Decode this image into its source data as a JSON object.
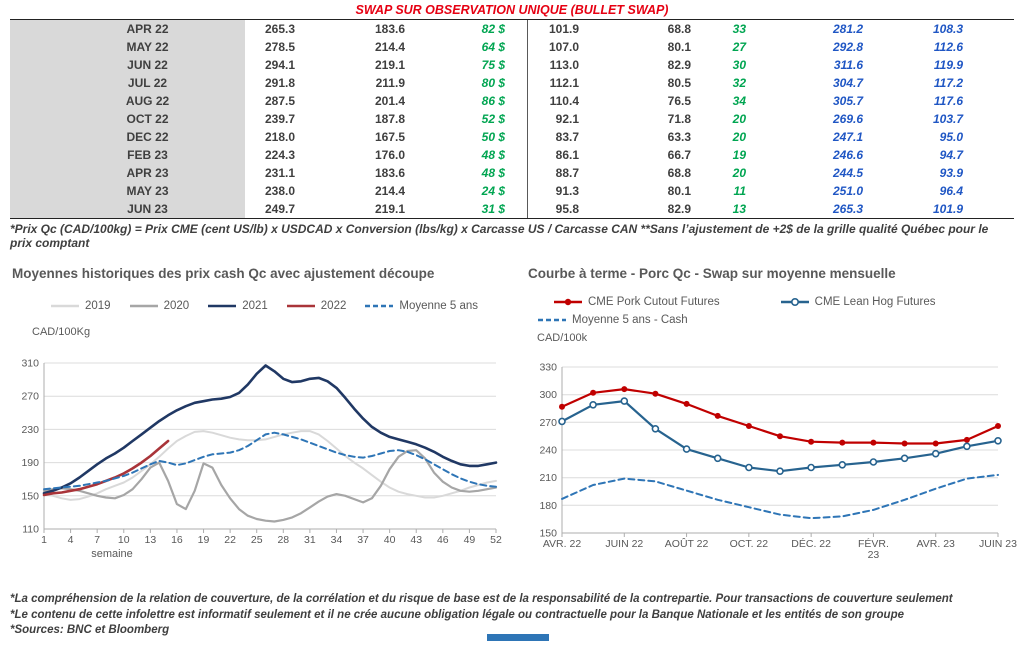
{
  "page": {
    "title": "SWAP SUR OBSERVATION UNIQUE (BULLET SWAP)",
    "table_footnote": "*Prix Qc (CAD/100kg) = Prix CME (cent US/lb) x USDCAD x Conversion (lbs/kg) x Carcasse US / Carcasse CAN **Sans l’ajustement de +2$ de la grille qualité Québec pour le prix comptant",
    "footnotes": [
      "*La compréhension de la relation de couverture, de la corrélation et du risque de base est de la responsabilité de la contrepartie. Pour transactions de couverture seulement",
      "*Le contenu de cette infolettre est informatif seulement et il ne crée aucune obligation légale ou contractuelle pour la Banque Nationale et les entités de son groupe",
      "*Sources: BNC et Bloomberg"
    ]
  },
  "colors": {
    "title_red": "#E60012",
    "green_value": "#00A551",
    "blue_value": "#1F56C4",
    "month_cell_bg": "#D9D9D9",
    "chart_title_gray": "#595959",
    "footer_bar_blue": "#2E75B6"
  },
  "swap_table": {
    "rows": [
      {
        "month": "APR 22",
        "qc_cutout": "265.3",
        "qc_hog": "183.6",
        "qc_spread": "82 $",
        "us_cutout": "101.9",
        "us_hog": "68.8",
        "us_spread": "33",
        "qc_cutout_adj": "281.2",
        "us_cutout_adj": "108.3"
      },
      {
        "month": "MAY 22",
        "qc_cutout": "278.5",
        "qc_hog": "214.4",
        "qc_spread": "64 $",
        "us_cutout": "107.0",
        "us_hog": "80.1",
        "us_spread": "27",
        "qc_cutout_adj": "292.8",
        "us_cutout_adj": "112.6"
      },
      {
        "month": "JUN 22",
        "qc_cutout": "294.1",
        "qc_hog": "219.1",
        "qc_spread": "75 $",
        "us_cutout": "113.0",
        "us_hog": "82.9",
        "us_spread": "30",
        "qc_cutout_adj": "311.6",
        "us_cutout_adj": "119.9"
      },
      {
        "month": "JUL 22",
        "qc_cutout": "291.8",
        "qc_hog": "211.9",
        "qc_spread": "80 $",
        "us_cutout": "112.1",
        "us_hog": "80.5",
        "us_spread": "32",
        "qc_cutout_adj": "304.7",
        "us_cutout_adj": "117.2"
      },
      {
        "month": "AUG 22",
        "qc_cutout": "287.5",
        "qc_hog": "201.4",
        "qc_spread": "86 $",
        "us_cutout": "110.4",
        "us_hog": "76.5",
        "us_spread": "34",
        "qc_cutout_adj": "305.7",
        "us_cutout_adj": "117.6"
      },
      {
        "month": "OCT 22",
        "qc_cutout": "239.7",
        "qc_hog": "187.8",
        "qc_spread": "52 $",
        "us_cutout": "92.1",
        "us_hog": "71.8",
        "us_spread": "20",
        "qc_cutout_adj": "269.6",
        "us_cutout_adj": "103.7"
      },
      {
        "month": "DEC 22",
        "qc_cutout": "218.0",
        "qc_hog": "167.5",
        "qc_spread": "50 $",
        "us_cutout": "83.7",
        "us_hog": "63.3",
        "us_spread": "20",
        "qc_cutout_adj": "247.1",
        "us_cutout_adj": "95.0"
      },
      {
        "month": "FEB 23",
        "qc_cutout": "224.3",
        "qc_hog": "176.0",
        "qc_spread": "48 $",
        "us_cutout": "86.1",
        "us_hog": "66.7",
        "us_spread": "19",
        "qc_cutout_adj": "246.6",
        "us_cutout_adj": "94.7"
      },
      {
        "month": "APR 23",
        "qc_cutout": "231.1",
        "qc_hog": "183.6",
        "qc_spread": "48 $",
        "us_cutout": "88.7",
        "us_hog": "68.8",
        "us_spread": "20",
        "qc_cutout_adj": "244.5",
        "us_cutout_adj": "93.9"
      },
      {
        "month": "MAY 23",
        "qc_cutout": "238.0",
        "qc_hog": "214.4",
        "qc_spread": "24 $",
        "us_cutout": "91.3",
        "us_hog": "80.1",
        "us_spread": "11",
        "qc_cutout_adj": "251.0",
        "us_cutout_adj": "96.4"
      },
      {
        "month": "JUN 23",
        "qc_cutout": "249.7",
        "qc_hog": "219.1",
        "qc_spread": "31 $",
        "us_cutout": "95.8",
        "us_hog": "82.9",
        "us_spread": "13",
        "qc_cutout_adj": "265.3",
        "us_cutout_adj": "101.9"
      }
    ]
  },
  "chart_data": [
    {
      "type": "line",
      "title": "Moyennes historiques des prix cash Qc avec ajustement découpe",
      "ylabel": "CAD/100Kg",
      "xlabel": "semaine",
      "ylim": [
        110,
        310
      ],
      "yticks": [
        110,
        150,
        190,
        230,
        270,
        310
      ],
      "x": [
        1,
        2,
        3,
        4,
        5,
        6,
        7,
        8,
        9,
        10,
        11,
        12,
        13,
        14,
        15,
        16,
        17,
        18,
        19,
        20,
        21,
        22,
        23,
        24,
        25,
        26,
        27,
        28,
        29,
        30,
        31,
        32,
        33,
        34,
        35,
        36,
        37,
        38,
        39,
        40,
        41,
        42,
        43,
        44,
        45,
        46,
        47,
        48,
        49,
        50,
        51,
        52
      ],
      "xticks": [
        1,
        4,
        7,
        10,
        13,
        16,
        19,
        22,
        25,
        28,
        31,
        34,
        37,
        40,
        43,
        46,
        49,
        52
      ],
      "grid": true,
      "legend_position": "top",
      "series": [
        {
          "name": "2019",
          "color": "#D9D9D9",
          "width": 2,
          "values": [
            152,
            150,
            147,
            145,
            146,
            149,
            153,
            158,
            162,
            166,
            172,
            180,
            188,
            197,
            207,
            216,
            222,
            227,
            228,
            226,
            223,
            220,
            218,
            217,
            217,
            218,
            221,
            224,
            226,
            228,
            228,
            224,
            216,
            207,
            198,
            190,
            183,
            175,
            167,
            160,
            155,
            152,
            150,
            148,
            148,
            150,
            153,
            156,
            160,
            163,
            166,
            168
          ]
        },
        {
          "name": "2020",
          "color": "#A6A6A6",
          "width": 2.2,
          "values": [
            156,
            158,
            159,
            158,
            156,
            153,
            150,
            148,
            147,
            151,
            158,
            170,
            184,
            190,
            168,
            140,
            134,
            156,
            189,
            184,
            163,
            147,
            134,
            126,
            122,
            120,
            119,
            121,
            124,
            129,
            136,
            143,
            149,
            152,
            150,
            146,
            142,
            147,
            162,
            182,
            197,
            204,
            205,
            195,
            178,
            167,
            160,
            156,
            155,
            156,
            158,
            160
          ]
        },
        {
          "name": "2021",
          "color": "#203864",
          "width": 2.6,
          "values": [
            153,
            156,
            160,
            165,
            172,
            180,
            188,
            195,
            201,
            208,
            216,
            224,
            232,
            240,
            247,
            253,
            258,
            262,
            264,
            266,
            267,
            269,
            274,
            284,
            297,
            307,
            300,
            291,
            287,
            288,
            291,
            292,
            288,
            280,
            268,
            255,
            243,
            233,
            226,
            221,
            218,
            215,
            212,
            208,
            203,
            197,
            192,
            188,
            186,
            186,
            188,
            190
          ]
        },
        {
          "name": "2022",
          "color": "#A93439",
          "width": 2.6,
          "values": [
            151,
            153,
            154,
            156,
            158,
            161,
            164,
            168,
            172,
            177,
            183,
            190,
            198,
            207,
            216,
            null,
            null,
            null,
            null,
            null,
            null,
            null,
            null,
            null,
            null,
            null,
            null,
            null,
            null,
            null,
            null,
            null,
            null,
            null,
            null,
            null,
            null,
            null,
            null,
            null,
            null,
            null,
            null,
            null,
            null,
            null,
            null,
            null,
            null,
            null,
            null,
            null
          ]
        },
        {
          "name": "Moyenne 5 ans",
          "color": "#2E75B6",
          "width": 2,
          "dash": true,
          "values": [
            158,
            159,
            160,
            161,
            162,
            164,
            166,
            168,
            171,
            174,
            178,
            183,
            188,
            192,
            190,
            187,
            189,
            193,
            197,
            200,
            201,
            202,
            205,
            210,
            217,
            224,
            226,
            224,
            221,
            218,
            214,
            210,
            206,
            202,
            199,
            197,
            196,
            198,
            201,
            204,
            205,
            203,
            199,
            194,
            188,
            182,
            176,
            171,
            167,
            164,
            162,
            161
          ]
        }
      ]
    },
    {
      "type": "line",
      "title": "Courbe à terme - Porc Qc - Swap sur moyenne mensuelle",
      "ylabel": "CAD/100k",
      "ylim": [
        150,
        330
      ],
      "yticks": [
        150,
        180,
        210,
        240,
        270,
        300,
        330
      ],
      "categories": [
        "AVR. 22",
        "MAI 22",
        "JUIN 22",
        "JUIL. 22",
        "AOÛT 22",
        "SEPT. 22",
        "OCT. 22",
        "NOV. 22",
        "DÉC. 22",
        "JANV. 23",
        "FÉVR. 23",
        "MARS 23",
        "AVR. 23",
        "MAI 23",
        "JUIN 23"
      ],
      "xtick_idx": [
        0,
        2,
        4,
        6,
        8,
        10,
        12,
        14
      ],
      "xtick_labels": [
        "AVR. 22",
        "JUIN 22",
        "AOÛT 22",
        "OCT. 22",
        "DÉC. 22",
        "FÉVR.\n23",
        "AVR. 23",
        "JUIN 23"
      ],
      "grid": true,
      "legend_position": "top",
      "series": [
        {
          "name": "CME Pork Cutout Futures",
          "color": "#C00000",
          "width": 2.2,
          "marker": "dot",
          "values": [
            287,
            302,
            306,
            301,
            290,
            277,
            266,
            255,
            249,
            248,
            248,
            247,
            247,
            251,
            266
          ]
        },
        {
          "name": "CME Lean Hog Futures",
          "color": "#27638F",
          "width": 2.2,
          "marker": "circle",
          "values": [
            271,
            289,
            293,
            263,
            241,
            231,
            221,
            217,
            221,
            224,
            227,
            231,
            236,
            244,
            250
          ]
        },
        {
          "name": "Moyenne 5 ans - Cash",
          "color": "#2E75B6",
          "width": 2,
          "dash": true,
          "values": [
            187,
            202,
            209,
            206,
            196,
            186,
            178,
            170,
            166,
            168,
            175,
            186,
            198,
            209,
            213
          ]
        }
      ]
    }
  ]
}
